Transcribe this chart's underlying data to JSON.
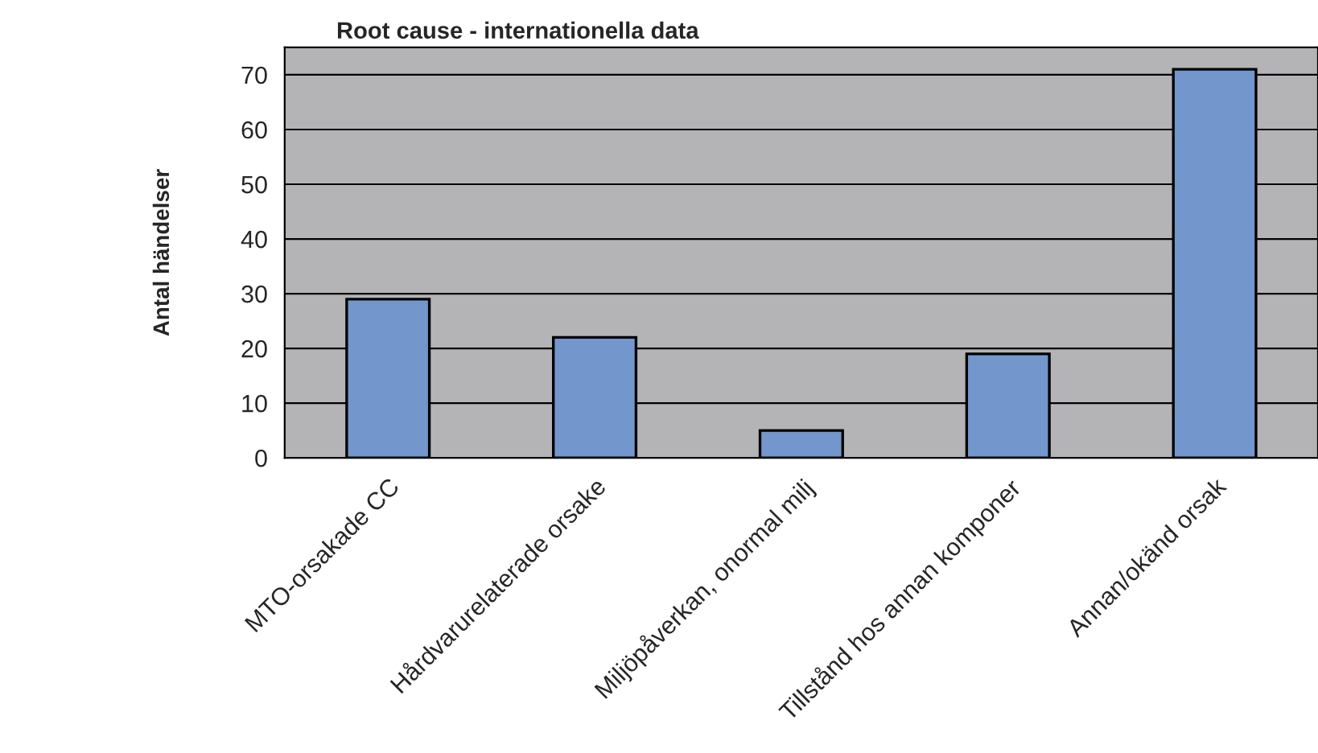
{
  "chart_data": {
    "type": "bar",
    "title": "Root cause - internationella data",
    "ylabel": "Antal händelser",
    "categories": [
      "MTO-orsakade CC",
      "Hårdvarurelaterade orsake",
      "Miljöpåverkan, onormal milj",
      "Tillstånd hos annan komponer",
      "Annan/okänd orsak"
    ],
    "values": [
      29,
      22,
      5,
      19,
      71
    ],
    "color": "#7396cc",
    "ylim": [
      0,
      75
    ],
    "yticks": [
      0,
      10,
      20,
      30,
      40,
      50,
      60,
      70
    ],
    "grid": "y",
    "legend": false
  }
}
